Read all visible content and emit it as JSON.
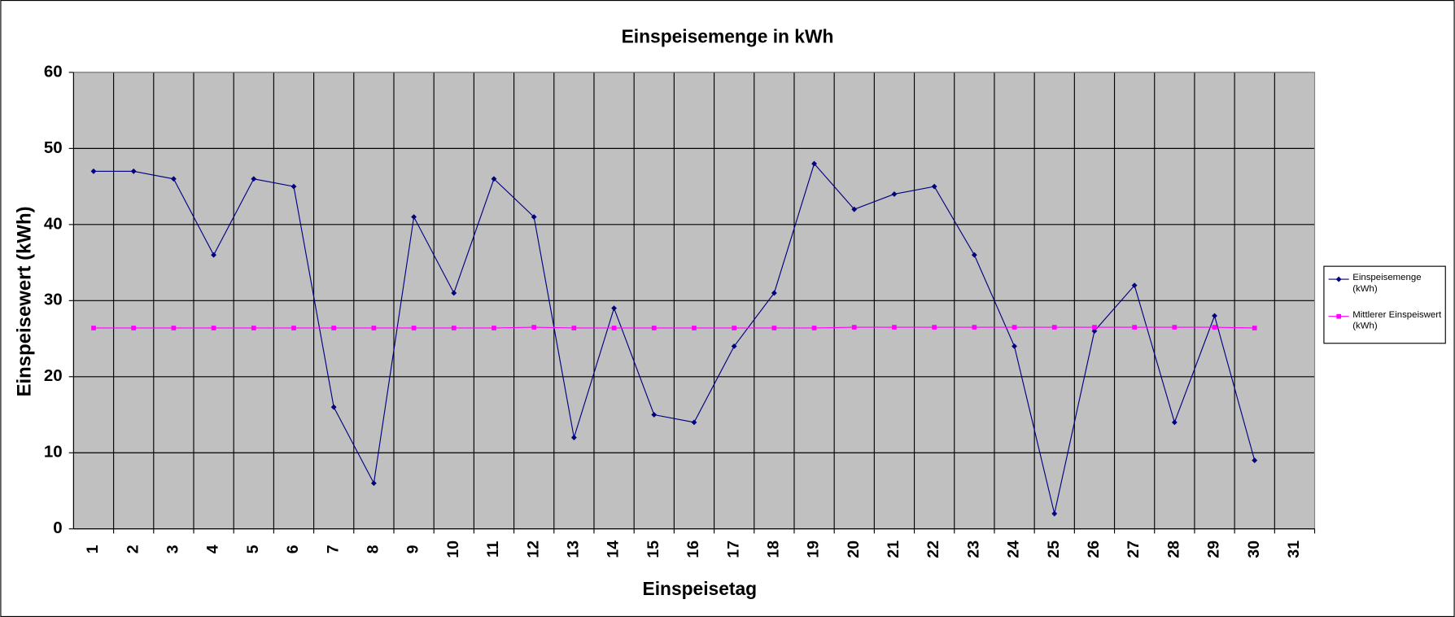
{
  "chart_data": {
    "type": "line",
    "title": "Einspeisemenge in kWh",
    "x_label": "Einspeisetag",
    "y_label": "Einspeisewert  (kWh)",
    "categories": [
      "1",
      "2",
      "3",
      "4",
      "5",
      "6",
      "7",
      "8",
      "9",
      "10",
      "11",
      "12",
      "13",
      "14",
      "15",
      "16",
      "17",
      "18",
      "19",
      "20",
      "21",
      "22",
      "23",
      "24",
      "25",
      "26",
      "27",
      "28",
      "29",
      "30",
      "31"
    ],
    "series": [
      {
        "name": "Einspeisemenge (kWh)",
        "color": "#000080",
        "marker": "diamond",
        "values": [
          47,
          47,
          46,
          36,
          46,
          45,
          16,
          6,
          41,
          31,
          46,
          41,
          12,
          29,
          15,
          14,
          24,
          31,
          48,
          42,
          44,
          45,
          36,
          24,
          2,
          26,
          32,
          14,
          28,
          9,
          null
        ]
      },
      {
        "name": "Mittlerer Einspeiswert (kWh)",
        "color": "#ff00ff",
        "marker": "square",
        "values": [
          26.4,
          26.4,
          26.4,
          26.4,
          26.4,
          26.4,
          26.4,
          26.4,
          26.4,
          26.4,
          26.4,
          26.5,
          26.4,
          26.4,
          26.4,
          26.4,
          26.4,
          26.4,
          26.4,
          26.5,
          26.5,
          26.5,
          26.5,
          26.5,
          26.5,
          26.5,
          26.5,
          26.5,
          26.5,
          26.4,
          null
        ]
      }
    ],
    "ylim": [
      0,
      60
    ],
    "yticks": [
      0,
      10,
      20,
      30,
      40,
      50,
      60
    ],
    "grid": true,
    "legend": "right"
  }
}
